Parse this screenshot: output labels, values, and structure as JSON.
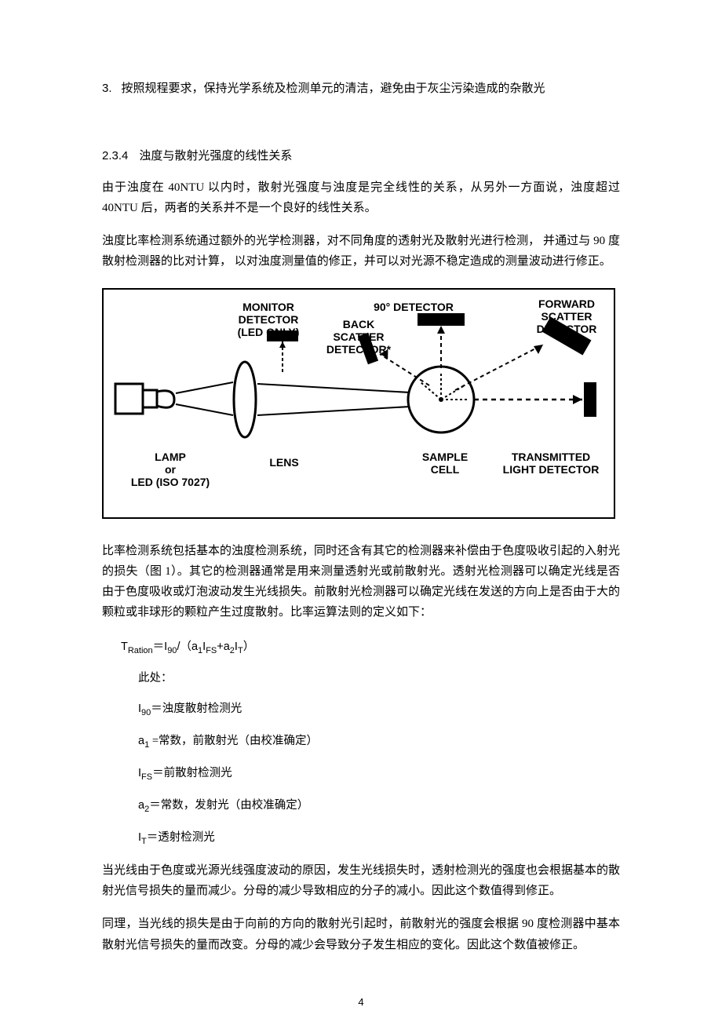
{
  "list3": {
    "num": "3.",
    "text": "按照规程要求，保持光学系统及检测单元的清洁，避免由于灰尘污染造成的杂散光"
  },
  "section": {
    "num": "2.3.4",
    "title": "浊度与散射光强度的线性关系"
  },
  "p1": "由于浊度在 40NTU 以内时，散射光强度与浊度是完全线性的关系，从另外一方面说，浊度超过 40NTU 后，两者的关系并不是一个良好的线性关系。",
  "p2": "浊度比率检测系统通过额外的光学检测器，对不同角度的透射光及散射光进行检测，  并通过与 90 度散射检测器的比对计算，  以对浊度测量值的修正，并可以对光源不稳定造成的测量波动进行修正。",
  "diagram": {
    "monitor": "MONITOR\nDETECTOR\n(LED ONLY)",
    "det90": "90° DETECTOR",
    "forward": "FORWARD\nSCATTER\nDETECTOR",
    "back": "BACK\nSCATTER\nDETECTOR*",
    "lamp": "LAMP\nor\nLED (ISO 7027)",
    "lens": "LENS",
    "sample": "SAMPLE\nCELL",
    "transmitted": "TRANSMITTED\nLIGHT DETECTOR"
  },
  "p3": "比率检测系统包括基本的浊度检测系统，同时还含有其它的检测器来补偿由于色度吸收引起的入射光的损失（图 1）。其它的检测器通常是用来测量透射光或前散射光。透射光检测器可以确定光线是否由于色度吸收或灯泡波动发生光线损失。前散射光检测器可以确定光线在发送的方向上是否由于大的颗粒或非球形的颗粒产生过度散射。比率运算法则的定义如下：",
  "formula": {
    "eq_lhs": "T",
    "eq_lhs_sub": "Ration",
    "eq_rhs_a": "＝I",
    "eq_rhs_90": "90",
    "eq_rhs_b": "/（a",
    "eq_a1": "1",
    "eq_ifs": "I",
    "eq_fs": "FS",
    "eq_plus": "+a",
    "eq_a2": "2",
    "eq_it": "I",
    "eq_t": "T",
    "eq_close": "）",
    "here": "此处：",
    "i90_a": "I",
    "i90_b": "90",
    "i90_c": "＝浊度散射检测光",
    "a1_a": "a",
    "a1_b": "1",
    "a1_c": " =常数，前散射光（由校准确定）",
    "ifs_a": "I",
    "ifs_b": "FS",
    "ifs_c": "＝前散射检测光",
    "a2_a": "a",
    "a2_b": "2",
    "a2_c": "＝常数，发射光（由校准确定）",
    "it_a": "I",
    "it_b": "T",
    "it_c": "＝透射检测光"
  },
  "p4": "当光线由于色度或光源光线强度波动的原因，发生光线损失时，透射检测光的强度也会根据基本的散射光信号损失的量而减少。分母的减少导致相应的分子的减小。因此这个数值得到修正。",
  "p5": "同理，当光线的损失是由于向前的方向的散射光引起时，前散射光的强度会根据 90 度检测器中基本散射光信号损失的量而改变。分母的减少会导致分子发生相应的变化。因此这个数值被修正。",
  "pageNumber": "4"
}
